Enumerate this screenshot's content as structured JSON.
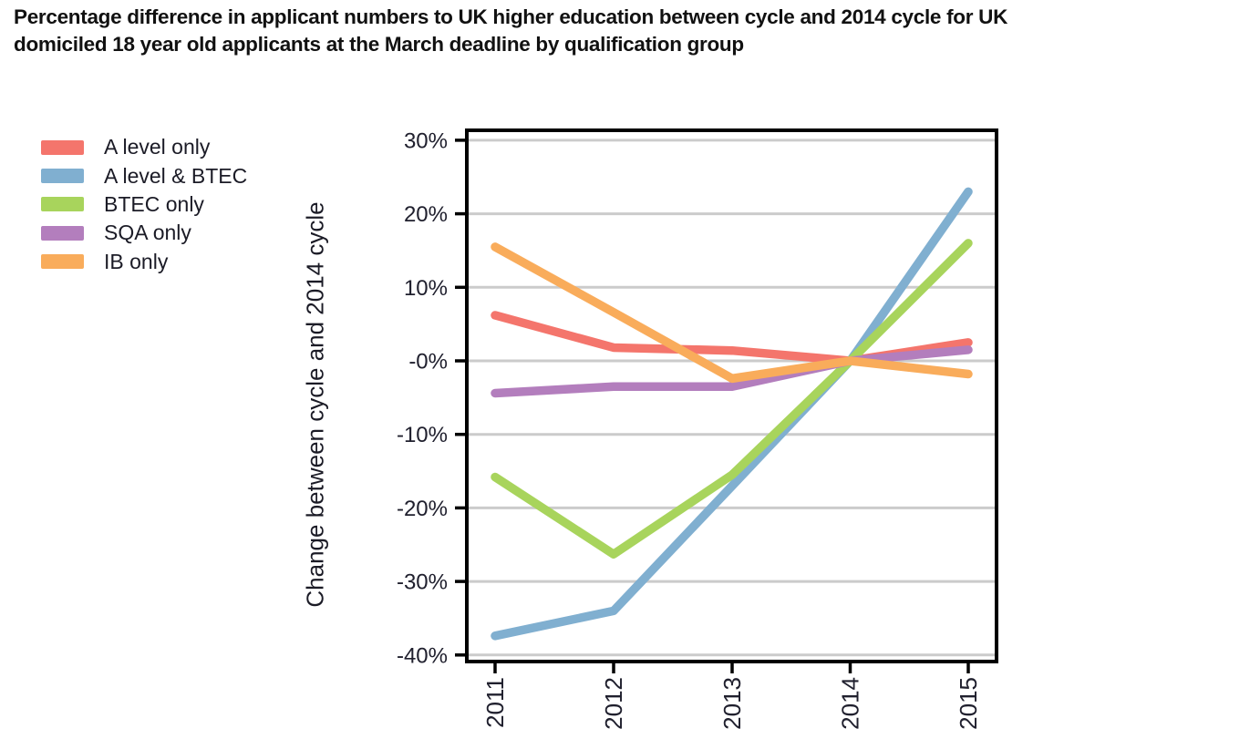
{
  "title": {
    "line1": "Percentage difference in applicant numbers to UK higher education between cycle and 2014 cycle for UK",
    "line2": "domiciled 18 year old applicants at the March deadline by qualification group"
  },
  "chart_data": {
    "type": "line",
    "categories": [
      "2011",
      "2012",
      "2013",
      "2014",
      "2015"
    ],
    "series": [
      {
        "name": "A level only",
        "color": "#F4756C",
        "values": [
          6.2,
          1.8,
          1.4,
          0,
          2.5
        ]
      },
      {
        "name": "A level & BTEC",
        "color": "#80AFD0",
        "values": [
          -37.4,
          -34.0,
          -17.0,
          0,
          23.0
        ]
      },
      {
        "name": "BTEC only",
        "color": "#A8D45C",
        "values": [
          -15.8,
          -26.3,
          -15.5,
          0,
          16.0
        ]
      },
      {
        "name": "SQA only",
        "color": "#B37EBD",
        "values": [
          -4.4,
          -3.5,
          -3.5,
          0,
          1.5
        ]
      },
      {
        "name": "IB only",
        "color": "#F9AC5B",
        "values": [
          15.5,
          6.6,
          -2.4,
          0,
          -1.8
        ]
      }
    ],
    "ylabel": "Change between cycle and 2014 cycle",
    "xlabel": "",
    "yticks": [
      {
        "label": "30%",
        "value": 30
      },
      {
        "label": "20%",
        "value": 20
      },
      {
        "label": "10%",
        "value": 10
      },
      {
        "label": "-0%",
        "value": 0
      },
      {
        "label": "-10%",
        "value": -10
      },
      {
        "label": "-20%",
        "value": -20
      },
      {
        "label": "-30%",
        "value": -30
      },
      {
        "label": "-40%",
        "value": -40
      }
    ],
    "ylim": [
      -41,
      31.4
    ],
    "grid": "horizontal-only",
    "legend_position": "upper-left-outside",
    "colors": {
      "gridline": "#CBCBCB",
      "axis": "#000000",
      "tick_label": "#20202e"
    }
  }
}
